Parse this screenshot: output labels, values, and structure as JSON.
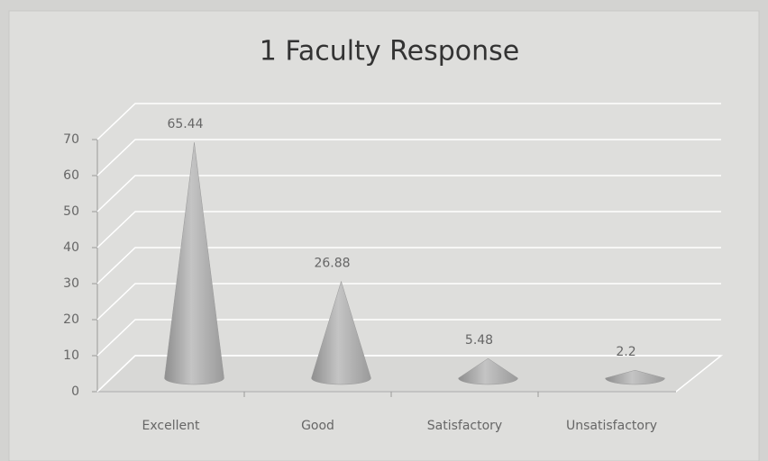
{
  "chart_data": {
    "type": "cone",
    "title": "1 Faculty Response",
    "categories": [
      "Excellent",
      "Good",
      "Satisfactory",
      "Unsatisfactory"
    ],
    "values": [
      65.44,
      26.88,
      5.48,
      2.2
    ],
    "color": "#a9a9a9",
    "ylim": [
      0,
      70
    ],
    "yticks": [
      0,
      10,
      20,
      30,
      40,
      50,
      60,
      70
    ],
    "grid": true
  }
}
